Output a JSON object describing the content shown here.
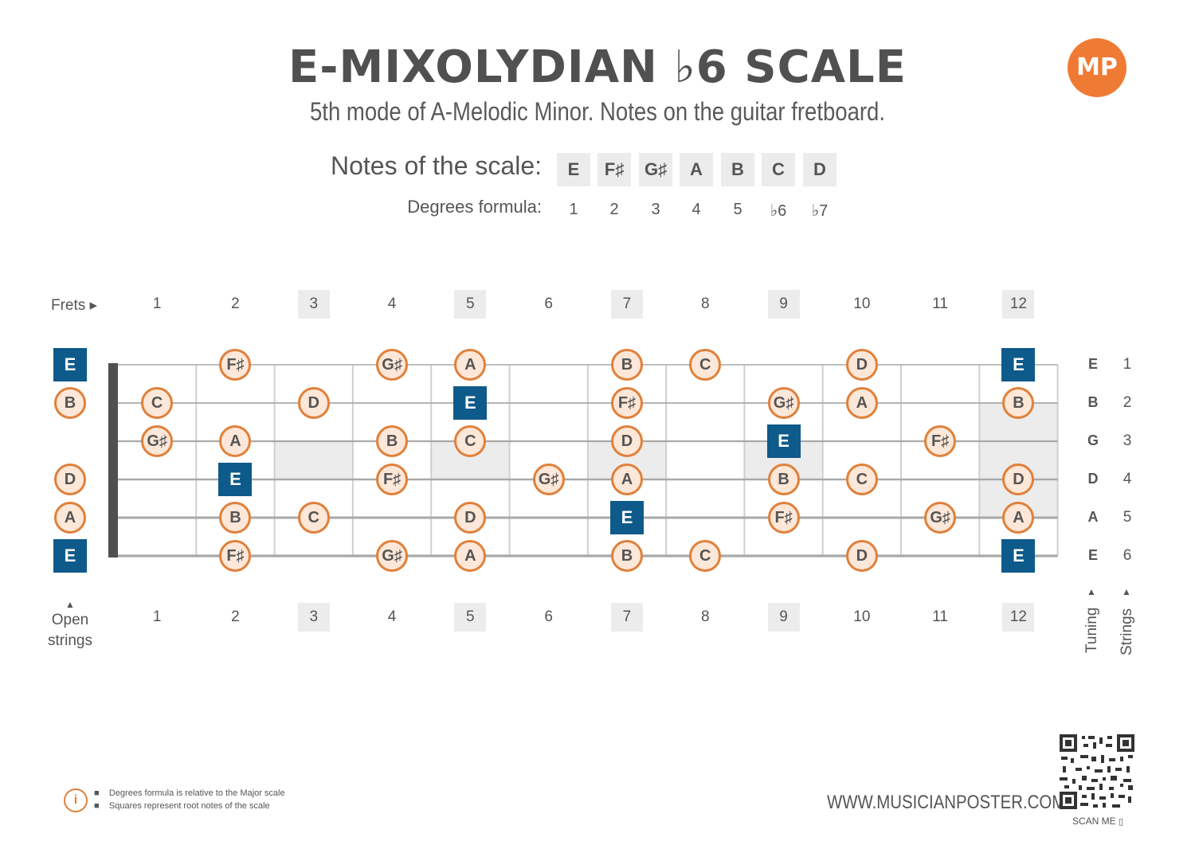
{
  "title": "E-MIXOLYDIAN ♭6 SCALE",
  "subtitle": "5th mode of A-Melodic Minor. Notes on the guitar fretboard.",
  "logo_text": "MP",
  "scale": {
    "notes_label": "Notes of the scale:",
    "notes": [
      "E",
      "F♯",
      "G♯",
      "A",
      "B",
      "C",
      "D"
    ],
    "degrees_label": "Degrees formula:",
    "degrees": [
      "1",
      "2",
      "3",
      "4",
      "5",
      "♭6",
      "♭7"
    ]
  },
  "frets": {
    "label": "Frets ▸",
    "numbers": [
      "1",
      "2",
      "3",
      "4",
      "5",
      "6",
      "7",
      "8",
      "9",
      "10",
      "11",
      "12"
    ],
    "highlighted": [
      "3",
      "5",
      "7",
      "9",
      "12"
    ]
  },
  "open_strings_label": [
    "Open",
    "strings"
  ],
  "tuning_label": "Tuning",
  "strings_label": "Strings",
  "strings": [
    {
      "number": "1",
      "tuning": "E",
      "open": {
        "note": "E",
        "root": true
      },
      "notes": [
        null,
        {
          "note": "F♯"
        },
        null,
        {
          "note": "G♯"
        },
        {
          "note": "A"
        },
        null,
        {
          "note": "B"
        },
        {
          "note": "C"
        },
        null,
        {
          "note": "D"
        },
        null,
        {
          "note": "E",
          "root": true
        }
      ]
    },
    {
      "number": "2",
      "tuning": "B",
      "open": {
        "note": "B",
        "root": false
      },
      "notes": [
        {
          "note": "C"
        },
        null,
        {
          "note": "D"
        },
        null,
        {
          "note": "E",
          "root": true
        },
        null,
        {
          "note": "F♯"
        },
        null,
        {
          "note": "G♯"
        },
        {
          "note": "A"
        },
        null,
        {
          "note": "B"
        }
      ]
    },
    {
      "number": "3",
      "tuning": "G",
      "open": null,
      "notes": [
        {
          "note": "G♯"
        },
        {
          "note": "A"
        },
        null,
        {
          "note": "B"
        },
        {
          "note": "C"
        },
        null,
        {
          "note": "D"
        },
        null,
        {
          "note": "E",
          "root": true
        },
        null,
        {
          "note": "F♯"
        },
        null
      ]
    },
    {
      "number": "4",
      "tuning": "D",
      "open": {
        "note": "D",
        "root": false
      },
      "notes": [
        null,
        {
          "note": "E",
          "root": true
        },
        null,
        {
          "note": "F♯"
        },
        null,
        {
          "note": "G♯"
        },
        {
          "note": "A"
        },
        null,
        {
          "note": "B"
        },
        {
          "note": "C"
        },
        null,
        {
          "note": "D"
        }
      ]
    },
    {
      "number": "5",
      "tuning": "A",
      "open": {
        "note": "A",
        "root": false
      },
      "notes": [
        null,
        {
          "note": "B"
        },
        {
          "note": "C"
        },
        null,
        {
          "note": "D"
        },
        null,
        {
          "note": "E",
          "root": true
        },
        null,
        {
          "note": "F♯"
        },
        null,
        {
          "note": "G♯"
        },
        {
          "note": "A"
        }
      ]
    },
    {
      "number": "6",
      "tuning": "E",
      "open": {
        "note": "E",
        "root": true
      },
      "notes": [
        null,
        {
          "note": "F♯"
        },
        null,
        {
          "note": "G♯"
        },
        {
          "note": "A"
        },
        null,
        {
          "note": "B"
        },
        {
          "note": "C"
        },
        null,
        {
          "note": "D"
        },
        null,
        {
          "note": "E",
          "root": true
        }
      ]
    }
  ],
  "footnotes": [
    "Degrees formula is relative to the Major scale",
    "Squares represent root notes of the scale"
  ],
  "website": "WWW.MUSICIANPOSTER.COM",
  "scan_me": "SCAN ME",
  "colors": {
    "root": "#0e5a8a",
    "note_fill": "#fde7d8",
    "note_border": "#e0803a",
    "accent": "#ef7a33"
  }
}
